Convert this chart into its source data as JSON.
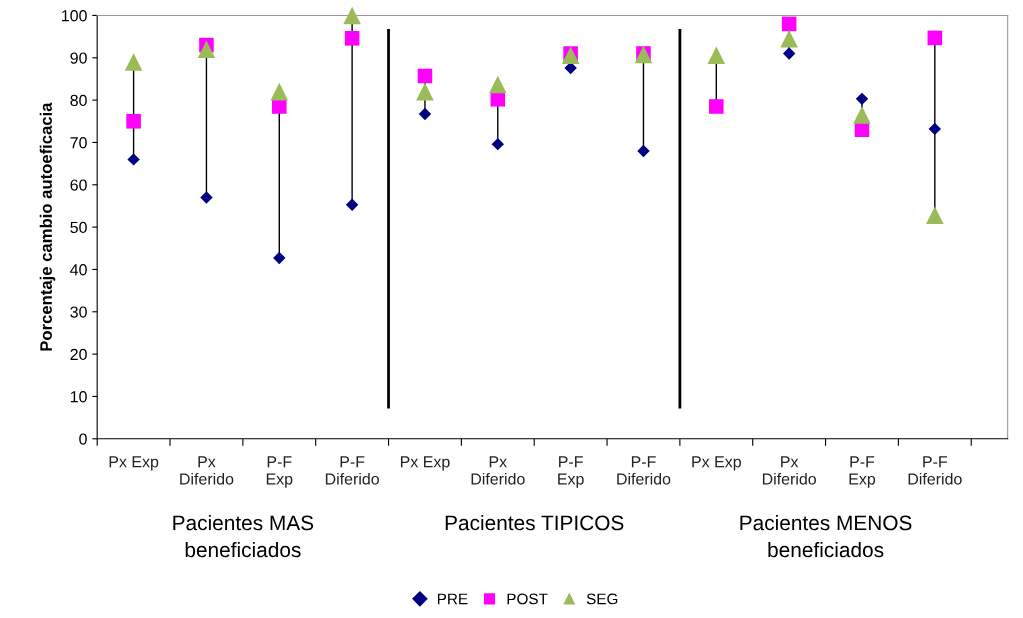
{
  "chart_data": {
    "type": "scatter",
    "ylabel": "Porcentaje cambio autoeficacia",
    "categories": [
      "Px Exp",
      "Px\nDiferido",
      "P-F\nExp",
      "P-F\nDiferido",
      "Px Exp",
      "Px\nDiferido",
      "P-F\nExp",
      "P-F\nDiferido",
      "Px Exp",
      "Px\nDiferido",
      "P-F\nExp",
      "P-F\nDiferido"
    ],
    "series": [
      {
        "name": "PRE",
        "color": "#000080",
        "marker": "diamond",
        "values": [
          66,
          57,
          42.7,
          55.3,
          76.7,
          69.6,
          87.6,
          68,
          null,
          91,
          80.3,
          73.2
        ]
      },
      {
        "name": "POST",
        "color": "#ff00ff",
        "marker": "square",
        "values": [
          75,
          93,
          78.5,
          94.6,
          85.7,
          80.2,
          91,
          91,
          78.5,
          98,
          73,
          94.7
        ]
      },
      {
        "name": "SEG",
        "color": "#9bbb59",
        "marker": "triangle",
        "values": [
          89,
          92,
          82,
          100,
          82,
          83.7,
          90.6,
          90.8,
          90.6,
          94.5,
          76.5,
          52.8
        ]
      }
    ],
    "ylim": [
      0,
      100
    ],
    "yticks": [
      0,
      10,
      20,
      30,
      40,
      50,
      60,
      70,
      80,
      90,
      100
    ],
    "annotations": [
      "Pacientes MAS\nbeneficiados",
      "Pacientes TIPICOS",
      "Pacientes MENOS\nbeneficiados"
    ],
    "grid": false,
    "legend": "bottom"
  }
}
